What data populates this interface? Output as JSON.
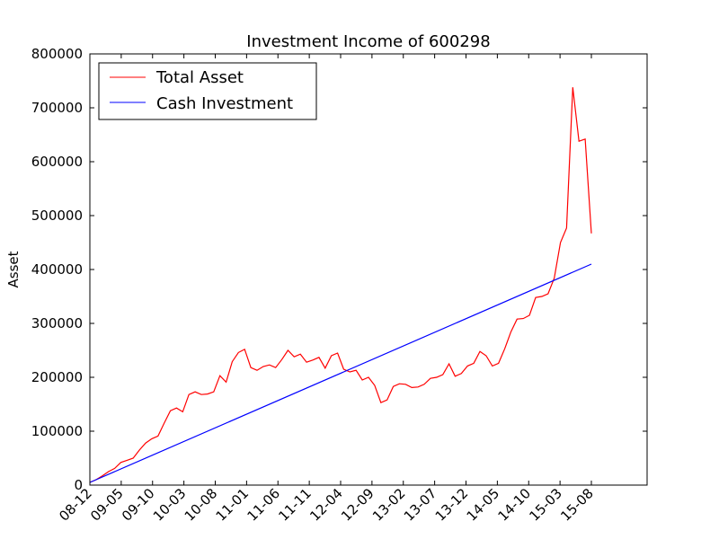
{
  "chart_data": {
    "type": "line",
    "title": "Investment Income of 600298",
    "xlabel": "",
    "ylabel": "Asset",
    "ylim": [
      0,
      800000
    ],
    "y_ticks": [
      "0",
      "100000",
      "200000",
      "300000",
      "400000",
      "500000",
      "600000",
      "700000",
      "800000"
    ],
    "x_tick_labels": [
      "08-12",
      "09-05",
      "09-10",
      "10-03",
      "10-08",
      "11-01",
      "11-06",
      "11-11",
      "12-04",
      "12-09",
      "13-02",
      "13-07",
      "13-12",
      "14-05",
      "14-10",
      "15-03",
      "15-08"
    ],
    "grid": false,
    "legend_position": "upper-left",
    "series": [
      {
        "name": "Total Asset",
        "color": "#ff0000",
        "values": [
          5000,
          10000,
          17000,
          25000,
          31000,
          42000,
          46000,
          50000,
          65000,
          78000,
          86000,
          91000,
          115000,
          138000,
          143000,
          136000,
          168000,
          173000,
          168000,
          169000,
          173000,
          203000,
          191000,
          229000,
          246000,
          252000,
          218000,
          213000,
          220000,
          223000,
          218000,
          233000,
          250000,
          238000,
          243000,
          228000,
          232000,
          237000,
          217000,
          240000,
          245000,
          215000,
          210000,
          213000,
          195000,
          200000,
          185000,
          153000,
          158000,
          183000,
          188000,
          187000,
          181000,
          182000,
          187000,
          198000,
          200000,
          205000,
          225000,
          202000,
          207000,
          221000,
          226000,
          248000,
          240000,
          221000,
          226000,
          253000,
          284000,
          308000,
          309000,
          315000,
          348000,
          350000,
          355000,
          384000,
          450000,
          477000,
          738000,
          638000,
          642000,
          467000
        ]
      },
      {
        "name": "Cash Investment",
        "color": "#0000ff",
        "values": [
          5000,
          410000
        ],
        "type_note": "linear"
      }
    ]
  }
}
